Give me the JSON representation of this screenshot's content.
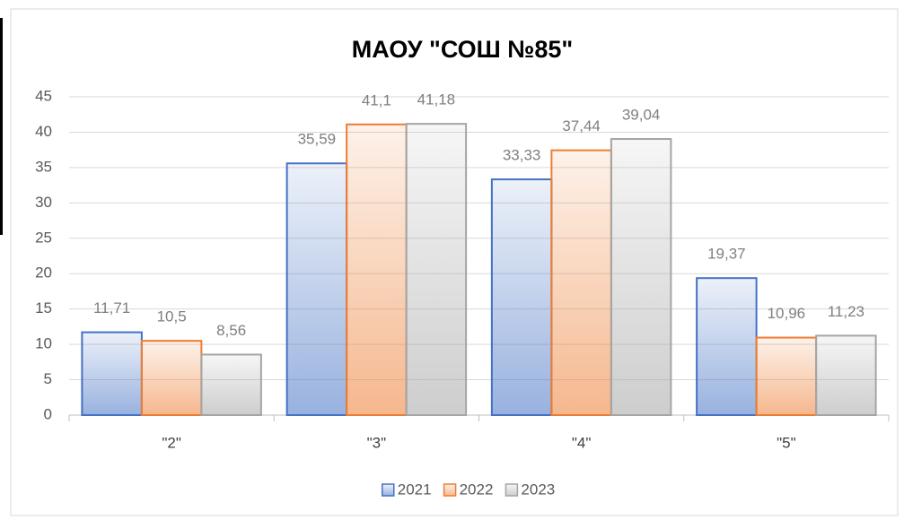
{
  "chart_data": {
    "type": "bar",
    "title": "МАОУ \"СОШ №85\"",
    "categories": [
      "\"2\"",
      "\"3\"",
      "\"4\"",
      "\"5\""
    ],
    "series": [
      {
        "name": "2021",
        "color": "#4472c4",
        "values": [
          11.71,
          35.59,
          33.33,
          19.37
        ],
        "value_labels": [
          "11,71",
          "35,59",
          "33,33",
          "19,37"
        ]
      },
      {
        "name": "2022",
        "color": "#ed7d31",
        "values": [
          10.5,
          41.1,
          37.44,
          10.96
        ],
        "value_labels": [
          "10,5",
          "41,1",
          "37,44",
          "10,96"
        ]
      },
      {
        "name": "2023",
        "color": "#a5a5a5",
        "values": [
          8.56,
          41.18,
          39.04,
          11.23
        ],
        "value_labels": [
          "8,56",
          "41,18",
          "39,04",
          "11,23"
        ]
      }
    ],
    "ylim": [
      0,
      45
    ],
    "yticks": [
      0,
      5,
      10,
      15,
      20,
      25,
      30,
      35,
      40,
      45
    ],
    "grid": true,
    "legend": "bottom"
  }
}
